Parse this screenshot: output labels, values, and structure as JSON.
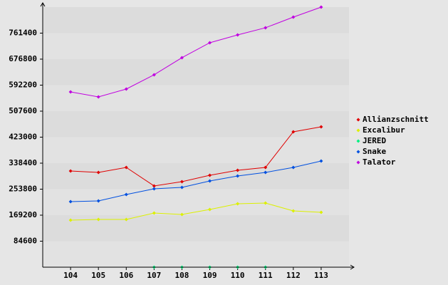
{
  "chart_data": {
    "type": "line",
    "categories": [
      "104",
      "105",
      "106",
      "107",
      "108",
      "109",
      "110",
      "111",
      "112",
      "113"
    ],
    "series": [
      {
        "name": "Allianzschnitt",
        "color": "#e00000",
        "values": [
          313000,
          308300,
          324500,
          264300,
          278200,
          299000,
          315300,
          324500,
          440400,
          456600
        ]
      },
      {
        "name": "Excalibur",
        "color": "#dcf000",
        "values": [
          153000,
          155300,
          155300,
          176200,
          171500,
          187800,
          206300,
          208600,
          183100,
          178500
        ]
      },
      {
        "name": "JERED",
        "color": "#00f080",
        "values": [
          null,
          null,
          null,
          0,
          0,
          0,
          0,
          0,
          null,
          null
        ]
      },
      {
        "name": "Snake",
        "color": "#0050e0",
        "values": [
          213300,
          215600,
          236400,
          255000,
          259600,
          280500,
          296700,
          308300,
          324500,
          345400
        ]
      },
      {
        "name": "Talator",
        "color": "#c000e0",
        "values": [
          570200,
          554000,
          579500,
          625900,
          681500,
          730200,
          755700,
          778900,
          813600,
          846000
        ]
      }
    ],
    "ylim": [
      0,
      846000
    ],
    "yticks": [
      84600,
      169200,
      253800,
      338400,
      423000,
      507600,
      592200,
      676800,
      761400
    ],
    "legend": "right"
  }
}
